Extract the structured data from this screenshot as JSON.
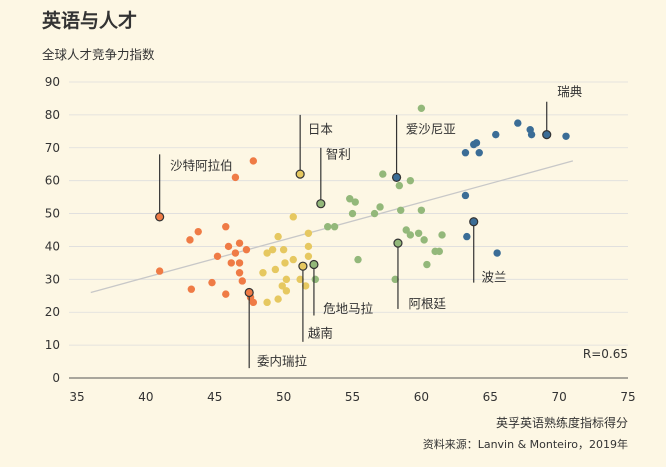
{
  "title": "英语与人才",
  "subtitle": "全球人才竞争力指数",
  "xlabel": "英孚英语熟练度指标得分",
  "source": "资料来源：Lanvin & Monteiro，2019年",
  "r_label": "R=0.65",
  "colors": {
    "background": "#fdf7e4",
    "orange": "#ef7b45",
    "yellow": "#e6c860",
    "green": "#93b87a",
    "blue": "#3b6d96",
    "trend": "#c8c8c8",
    "text": "#333333"
  },
  "chart_data": {
    "type": "scatter",
    "xlim": [
      35,
      75
    ],
    "ylim": [
      0,
      90
    ],
    "xticks": [
      35,
      40,
      45,
      50,
      55,
      60,
      65,
      70,
      75
    ],
    "yticks": [
      0,
      10,
      20,
      30,
      40,
      50,
      60,
      70,
      80,
      90
    ],
    "trendline": {
      "x": [
        36,
        71
      ],
      "y": [
        26,
        66
      ]
    },
    "series": [
      {
        "color": "orange",
        "points": [
          [
            41,
            49
          ],
          [
            41,
            32.5
          ],
          [
            43.2,
            42
          ],
          [
            43.8,
            44.5
          ],
          [
            43.3,
            27
          ],
          [
            44.8,
            29
          ],
          [
            45.2,
            37
          ],
          [
            45.8,
            46
          ],
          [
            46,
            40
          ],
          [
            46.2,
            35
          ],
          [
            46.5,
            38
          ],
          [
            46.8,
            41
          ],
          [
            46.8,
            32
          ],
          [
            47,
            29.5
          ],
          [
            47.3,
            39
          ],
          [
            47.5,
            26
          ],
          [
            47.8,
            23
          ],
          [
            47.6,
            24.5
          ],
          [
            46.5,
            61
          ],
          [
            47.8,
            66
          ],
          [
            45.8,
            25.5
          ],
          [
            46.8,
            35
          ]
        ]
      },
      {
        "color": "yellow",
        "points": [
          [
            48.5,
            32
          ],
          [
            48.8,
            38
          ],
          [
            48.8,
            23
          ],
          [
            49.2,
            39
          ],
          [
            49.4,
            33
          ],
          [
            49.6,
            24
          ],
          [
            49.6,
            43
          ],
          [
            49.9,
            28
          ],
          [
            50,
            39
          ],
          [
            50.1,
            35
          ],
          [
            50.2,
            30
          ],
          [
            50.2,
            26.5
          ],
          [
            50.7,
            36
          ],
          [
            50.7,
            49
          ],
          [
            51.2,
            62
          ],
          [
            51.4,
            34
          ],
          [
            51.8,
            37
          ],
          [
            51.8,
            40
          ],
          [
            51.8,
            44
          ],
          [
            51.6,
            28
          ],
          [
            51.2,
            30
          ]
        ]
      },
      {
        "color": "green",
        "points": [
          [
            52.7,
            53
          ],
          [
            52.2,
            34.5
          ],
          [
            52.3,
            30
          ],
          [
            53.2,
            46
          ],
          [
            53.7,
            46
          ],
          [
            54.8,
            54.5
          ],
          [
            55,
            50
          ],
          [
            55.2,
            53.5
          ],
          [
            55.4,
            36
          ],
          [
            56.6,
            50
          ],
          [
            57,
            52
          ],
          [
            57.2,
            62
          ],
          [
            58.3,
            41
          ],
          [
            58.1,
            30
          ],
          [
            58.4,
            58.5
          ],
          [
            58.5,
            51
          ],
          [
            58.9,
            45
          ],
          [
            59.2,
            43.5
          ],
          [
            59.2,
            60
          ],
          [
            59.8,
            44
          ],
          [
            60,
            51
          ],
          [
            60,
            82
          ],
          [
            60.2,
            42
          ],
          [
            60.4,
            34.5
          ],
          [
            61,
            38.5
          ],
          [
            61.3,
            38.5
          ],
          [
            61.5,
            43.5
          ]
        ]
      },
      {
        "color": "blue",
        "points": [
          [
            58.2,
            61
          ],
          [
            63.2,
            68.5
          ],
          [
            63.2,
            55.5
          ],
          [
            63.3,
            43
          ],
          [
            63.8,
            71
          ],
          [
            64,
            71.5
          ],
          [
            64.2,
            68.5
          ],
          [
            63.8,
            47.5
          ],
          [
            65.4,
            74
          ],
          [
            65.5,
            38
          ],
          [
            67,
            77.5
          ],
          [
            67.9,
            75.5
          ],
          [
            68,
            74
          ],
          [
            69.1,
            74
          ],
          [
            70.5,
            73.5
          ]
        ]
      }
    ],
    "labeled_points": [
      {
        "name": "瑞典",
        "x": 69.1,
        "y": 74,
        "lx": 69.5,
        "ly": 87,
        "anchor": "start",
        "lineTo": 84
      },
      {
        "name": "日本",
        "x": 51.2,
        "y": 62,
        "lx": 51.4,
        "ly": 75.5,
        "anchor": "start",
        "lineTo": 80
      },
      {
        "name": "智利",
        "x": 52.7,
        "y": 53,
        "lx": 52.7,
        "ly": 68,
        "anchor": "start",
        "lineTo": 70
      },
      {
        "name": "爱沙尼亚",
        "x": 58.2,
        "y": 61,
        "lx": 58.5,
        "ly": 75.5,
        "anchor": "start",
        "lineTo": 80
      },
      {
        "name": "沙特阿拉伯",
        "x": 41,
        "y": 49,
        "lx": 41.4,
        "ly": 64.5,
        "anchor": "start",
        "lineTo": 68
      },
      {
        "name": "波兰",
        "x": 63.8,
        "y": 47.5,
        "lx": 64,
        "ly": 30.5,
        "anchor": "start",
        "lineTo": 29
      },
      {
        "name": "阿根廷",
        "x": 58.3,
        "y": 41,
        "lx": 58.7,
        "ly": 22.5,
        "anchor": "start",
        "lineTo": 21
      },
      {
        "name": "危地马拉",
        "x": 52.2,
        "y": 34.5,
        "lx": 52.5,
        "ly": 21,
        "anchor": "start",
        "lineTo": 19
      },
      {
        "name": "越南",
        "x": 51.4,
        "y": 34,
        "lx": 51.4,
        "ly": 13.5,
        "anchor": "start",
        "lineTo": 11
      },
      {
        "name": "委内瑞拉",
        "x": 47.5,
        "y": 26,
        "lx": 47.7,
        "ly": 5,
        "anchor": "start",
        "lineTo": 3
      }
    ]
  }
}
